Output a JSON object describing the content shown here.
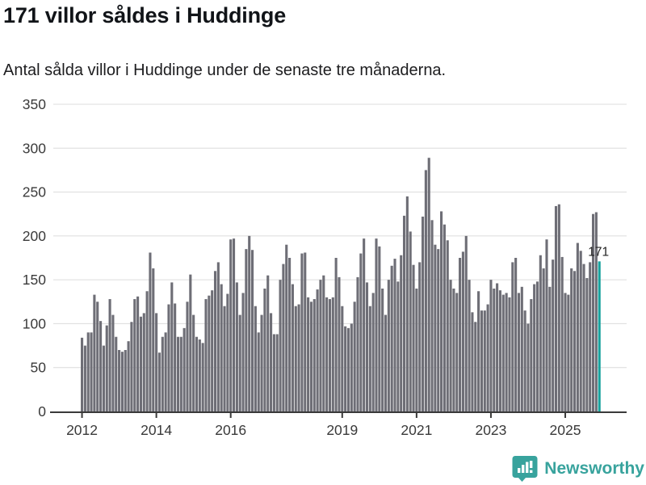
{
  "header": {
    "title": "171 villor såldes i Huddinge",
    "subtitle": "Antal sålda villor i Huddinge under de senaste tre månaderna."
  },
  "chart_data": {
    "type": "bar",
    "title": "171 villor såldes i Huddinge",
    "subtitle": "Antal sålda villor i Huddinge under de senaste tre månaderna.",
    "xlabel": "",
    "ylabel": "",
    "ylim": [
      0,
      350
    ],
    "yticks": [
      0,
      50,
      100,
      150,
      200,
      250,
      300,
      350
    ],
    "grid": true,
    "legend": false,
    "bar_color": "#6e6e76",
    "grid_color": "#dcdcdc",
    "axis_color": "#3a3a3a",
    "xticks": [
      {
        "label": "2012",
        "index": 0
      },
      {
        "label": "2014",
        "index": 24
      },
      {
        "label": "2016",
        "index": 48
      },
      {
        "label": "2019",
        "index": 84
      },
      {
        "label": "2021",
        "index": 108
      },
      {
        "label": "2023",
        "index": 132
      },
      {
        "label": "2025",
        "index": 156
      }
    ],
    "x_start_year": 2012,
    "values": [
      84,
      75,
      90,
      90,
      133,
      125,
      103,
      75,
      98,
      128,
      110,
      85,
      70,
      68,
      70,
      80,
      102,
      128,
      131,
      108,
      112,
      137,
      181,
      163,
      112,
      67,
      85,
      90,
      122,
      147,
      123,
      85,
      85,
      95,
      125,
      156,
      110,
      85,
      82,
      78,
      128,
      132,
      138,
      160,
      170,
      145,
      120,
      134,
      196,
      197,
      147,
      110,
      135,
      185,
      200,
      184,
      120,
      90,
      110,
      140,
      155,
      112,
      88,
      88,
      150,
      168,
      190,
      175,
      145,
      120,
      122,
      180,
      181,
      130,
      125,
      128,
      139,
      150,
      155,
      130,
      128,
      130,
      175,
      153,
      120,
      97,
      95,
      100,
      125,
      153,
      180,
      197,
      147,
      120,
      135,
      197,
      188,
      140,
      110,
      150,
      166,
      174,
      148,
      178,
      223,
      245,
      205,
      167,
      140,
      170,
      222,
      275,
      289,
      218,
      190,
      185,
      228,
      213,
      195,
      150,
      140,
      135,
      175,
      182,
      200,
      150,
      113,
      102,
      137,
      115,
      115,
      122,
      150,
      140,
      146,
      138,
      133,
      135,
      130,
      170,
      175,
      135,
      142,
      115,
      100,
      128,
      145,
      148,
      178,
      163,
      196,
      142,
      173,
      234,
      236,
      176,
      135,
      133,
      163,
      160,
      192,
      183,
      168,
      152,
      170,
      225,
      227,
      171
    ],
    "highlight": {
      "index_from_end": 1,
      "value": 171,
      "label": "171",
      "color": "#17a29d"
    }
  },
  "footer": {
    "brand": "Newsworthy",
    "brand_color": "#38a39d",
    "logo_icon": "newsworthy-pin-barchart-icon"
  }
}
